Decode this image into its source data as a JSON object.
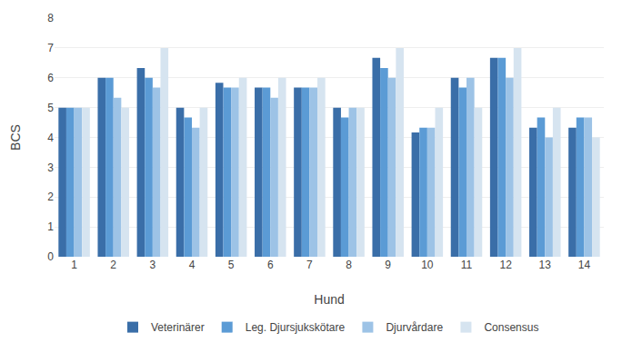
{
  "chart_data": {
    "type": "bar",
    "xlabel": "Hund",
    "ylabel": "BCS",
    "categories": [
      "1",
      "2",
      "3",
      "4",
      "5",
      "6",
      "7",
      "8",
      "9",
      "10",
      "11",
      "12",
      "13",
      "14"
    ],
    "series": [
      {
        "name": "Veterinärer",
        "color": "#3a6ea8",
        "values": [
          5.0,
          6.0,
          6.33,
          5.0,
          5.83,
          5.67,
          5.67,
          5.0,
          6.67,
          4.17,
          6.0,
          6.67,
          4.33,
          4.33
        ]
      },
      {
        "name": "Leg. Djursjukskötare",
        "color": "#5b9bd5",
        "values": [
          5.0,
          6.0,
          6.0,
          4.67,
          5.67,
          5.67,
          5.67,
          4.67,
          6.33,
          4.33,
          5.67,
          6.67,
          4.67,
          4.67
        ]
      },
      {
        "name": "Djurvårdare",
        "color": "#9dc3e6",
        "values": [
          5.0,
          5.33,
          5.67,
          4.33,
          5.67,
          5.33,
          5.67,
          5.0,
          6.0,
          4.33,
          6.0,
          6.0,
          4.0,
          4.67
        ]
      },
      {
        "name": "Consensus",
        "color": "#d6e4f0",
        "values": [
          5.0,
          5.0,
          7.0,
          5.0,
          6.0,
          6.0,
          6.0,
          5.0,
          7.0,
          5.0,
          5.0,
          7.0,
          5.0,
          4.0
        ]
      }
    ],
    "ylim": [
      0,
      8
    ],
    "yticks": [
      0,
      1,
      2,
      3,
      4,
      5,
      6,
      7,
      8
    ],
    "grid": true,
    "legend": "bottom"
  }
}
